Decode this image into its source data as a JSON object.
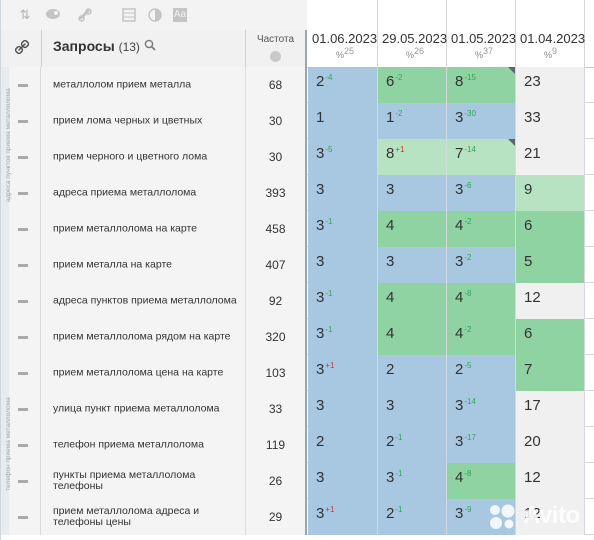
{
  "toolbar": {
    "icons": [
      "sort-icon",
      "eye-icon",
      "link-icon",
      "table-icon",
      "contrast-icon",
      "text-size-icon"
    ],
    "text_size_label": "Aa"
  },
  "header": {
    "title": "Запросы",
    "count": "(13)",
    "frequency_label": "Частота"
  },
  "dates": [
    {
      "date": "01.06.2023",
      "pct": "25"
    },
    {
      "date": "29.05.2023",
      "pct": "26"
    },
    {
      "date": "01.05.2023",
      "pct": "37"
    },
    {
      "date": "01.04.2023",
      "pct": "9"
    }
  ],
  "colors": {
    "blue": "#a8c8e2",
    "green": "#8fd3a3",
    "light_green": "#b7e3c3",
    "gray": "#f0f0f0",
    "up": "#2fa84f",
    "down": "#e03030"
  },
  "rows": [
    {
      "query": "металлолом прием металла",
      "freq": "68",
      "positions": [
        {
          "v": "2",
          "d": "-4",
          "dir": "up",
          "c": "blue"
        },
        {
          "v": "6",
          "d": "-2",
          "dir": "up",
          "c": "green"
        },
        {
          "v": "8",
          "d": "-15",
          "dir": "up",
          "c": "green",
          "corner": true
        },
        {
          "v": "23",
          "d": "",
          "dir": "",
          "c": "gray"
        }
      ]
    },
    {
      "query": "прием лома черных и цветных",
      "freq": "30",
      "positions": [
        {
          "v": "1",
          "d": "",
          "dir": "",
          "c": "blue"
        },
        {
          "v": "1",
          "d": "-2",
          "dir": "up",
          "c": "blue"
        },
        {
          "v": "3",
          "d": "-30",
          "dir": "up",
          "c": "blue"
        },
        {
          "v": "33",
          "d": "",
          "dir": "",
          "c": "gray"
        }
      ]
    },
    {
      "query": "прием черного и цветного лома",
      "freq": "30",
      "positions": [
        {
          "v": "3",
          "d": "-5",
          "dir": "up",
          "c": "blue"
        },
        {
          "v": "8",
          "d": "+1",
          "dir": "down",
          "c": "lgreen"
        },
        {
          "v": "7",
          "d": "-14",
          "dir": "up",
          "c": "lgreen",
          "corner": true
        },
        {
          "v": "21",
          "d": "",
          "dir": "",
          "c": "gray"
        }
      ]
    },
    {
      "query": "адреса приема металлолома",
      "freq": "393",
      "positions": [
        {
          "v": "3",
          "d": "",
          "dir": "",
          "c": "blue"
        },
        {
          "v": "3",
          "d": "",
          "dir": "",
          "c": "blue"
        },
        {
          "v": "3",
          "d": "-6",
          "dir": "up",
          "c": "blue"
        },
        {
          "v": "9",
          "d": "",
          "dir": "",
          "c": "lgreen"
        }
      ]
    },
    {
      "query": "прием металлолома на карте",
      "freq": "458",
      "positions": [
        {
          "v": "3",
          "d": "-1",
          "dir": "up",
          "c": "blue"
        },
        {
          "v": "4",
          "d": "",
          "dir": "",
          "c": "green"
        },
        {
          "v": "4",
          "d": "-2",
          "dir": "up",
          "c": "green"
        },
        {
          "v": "6",
          "d": "",
          "dir": "",
          "c": "green"
        }
      ]
    },
    {
      "query": "прием металла на карте",
      "freq": "407",
      "positions": [
        {
          "v": "3",
          "d": "",
          "dir": "",
          "c": "blue"
        },
        {
          "v": "3",
          "d": "",
          "dir": "",
          "c": "blue"
        },
        {
          "v": "3",
          "d": "-2",
          "dir": "up",
          "c": "blue"
        },
        {
          "v": "5",
          "d": "",
          "dir": "",
          "c": "green"
        }
      ]
    },
    {
      "query": "адреса пунктов приема металлолома",
      "freq": "92",
      "positions": [
        {
          "v": "3",
          "d": "-1",
          "dir": "up",
          "c": "blue"
        },
        {
          "v": "4",
          "d": "",
          "dir": "",
          "c": "green"
        },
        {
          "v": "4",
          "d": "-8",
          "dir": "up",
          "c": "green"
        },
        {
          "v": "12",
          "d": "",
          "dir": "",
          "c": "gray"
        }
      ]
    },
    {
      "query": "прием металлолома рядом на карте",
      "freq": "320",
      "positions": [
        {
          "v": "3",
          "d": "-1",
          "dir": "up",
          "c": "blue"
        },
        {
          "v": "4",
          "d": "",
          "dir": "",
          "c": "green"
        },
        {
          "v": "4",
          "d": "-2",
          "dir": "up",
          "c": "green"
        },
        {
          "v": "6",
          "d": "",
          "dir": "",
          "c": "green"
        }
      ]
    },
    {
      "query": "прием металлолома цена на карте",
      "freq": "103",
      "positions": [
        {
          "v": "3",
          "d": "+1",
          "dir": "down",
          "c": "blue"
        },
        {
          "v": "2",
          "d": "",
          "dir": "",
          "c": "blue"
        },
        {
          "v": "2",
          "d": "-5",
          "dir": "up",
          "c": "blue"
        },
        {
          "v": "7",
          "d": "",
          "dir": "",
          "c": "green"
        }
      ]
    },
    {
      "query": "улица пункт приема металлолома",
      "freq": "33",
      "positions": [
        {
          "v": "3",
          "d": "",
          "dir": "",
          "c": "blue"
        },
        {
          "v": "3",
          "d": "",
          "dir": "",
          "c": "blue"
        },
        {
          "v": "3",
          "d": "-14",
          "dir": "up",
          "c": "blue"
        },
        {
          "v": "17",
          "d": "",
          "dir": "",
          "c": "gray"
        }
      ]
    },
    {
      "query": "телефон приема металлолома",
      "freq": "119",
      "positions": [
        {
          "v": "2",
          "d": "",
          "dir": "",
          "c": "blue"
        },
        {
          "v": "2",
          "d": "-1",
          "dir": "up",
          "c": "blue"
        },
        {
          "v": "3",
          "d": "-17",
          "dir": "up",
          "c": "blue"
        },
        {
          "v": "20",
          "d": "",
          "dir": "",
          "c": "gray"
        }
      ]
    },
    {
      "query": "пункты приема металлолома телефоны",
      "freq": "26",
      "positions": [
        {
          "v": "3",
          "d": "",
          "dir": "",
          "c": "blue"
        },
        {
          "v": "3",
          "d": "-1",
          "dir": "up",
          "c": "blue"
        },
        {
          "v": "4",
          "d": "-8",
          "dir": "up",
          "c": "green"
        },
        {
          "v": "12",
          "d": "",
          "dir": "",
          "c": "gray"
        }
      ]
    },
    {
      "query": "прием металлолома адреса и телефоны цены",
      "freq": "29",
      "positions": [
        {
          "v": "3",
          "d": "+1",
          "dir": "down",
          "c": "blue"
        },
        {
          "v": "2",
          "d": "-1",
          "dir": "up",
          "c": "blue"
        },
        {
          "v": "3",
          "d": "-9",
          "dir": "up",
          "c": "blue"
        },
        {
          "v": "12",
          "d": "",
          "dir": "",
          "c": "gray"
        }
      ]
    }
  ],
  "side_labels": [
    "адреса пунктов приема металлолома",
    "телефон приема металлолома"
  ],
  "watermark": "Avito"
}
